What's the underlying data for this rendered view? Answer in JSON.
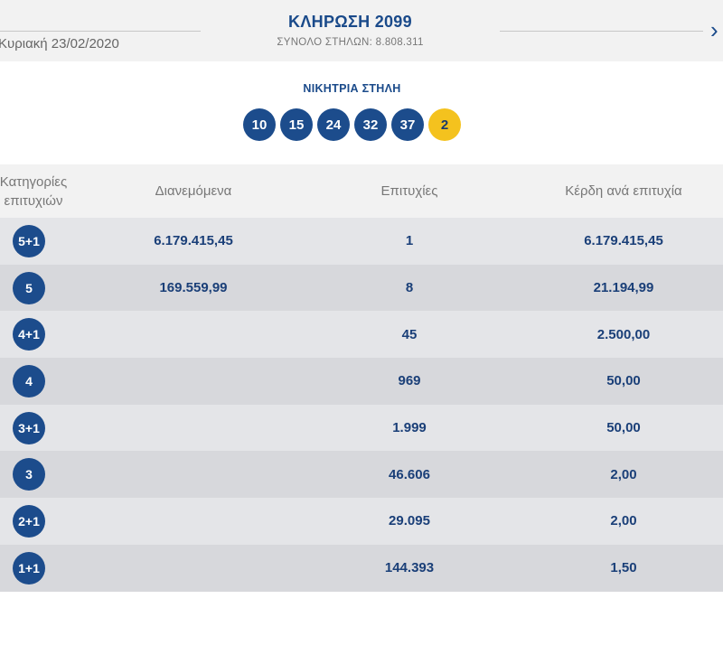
{
  "header": {
    "date": "Κυριακή 23/02/2020",
    "draw_title": "ΚΛΗΡΩΣΗ 2099",
    "total_columns": "ΣΥΝΟΛΟ ΣΤΗΛΩΝ: 8.808.311",
    "next_arrow": "›"
  },
  "winning": {
    "label": "ΝΙΚΗΤΡΙΑ ΣΤΗΛΗ",
    "numbers": [
      "10",
      "15",
      "24",
      "32",
      "37"
    ],
    "joker": "2",
    "colors": {
      "number_ball": "#1c4c8c",
      "joker_ball": "#f4c21e"
    }
  },
  "table": {
    "headers": {
      "category": "Κατηγορίες επιτυχιών",
      "distributed": "Διανεμόμενα",
      "winners": "Επιτυχίες",
      "prize": "Κέρδη ανά επιτυχία"
    },
    "rows": [
      {
        "category": "5+1",
        "distributed": "6.179.415,45",
        "winners": "1",
        "prize": "6.179.415,45"
      },
      {
        "category": "5",
        "distributed": "169.559,99",
        "winners": "8",
        "prize": "21.194,99"
      },
      {
        "category": "4+1",
        "distributed": "",
        "winners": "45",
        "prize": "2.500,00"
      },
      {
        "category": "4",
        "distributed": "",
        "winners": "969",
        "prize": "50,00"
      },
      {
        "category": "3+1",
        "distributed": "",
        "winners": "1.999",
        "prize": "50,00"
      },
      {
        "category": "3",
        "distributed": "",
        "winners": "46.606",
        "prize": "2,00"
      },
      {
        "category": "2+1",
        "distributed": "",
        "winners": "29.095",
        "prize": "2,00"
      },
      {
        "category": "1+1",
        "distributed": "",
        "winners": "144.393",
        "prize": "1,50"
      }
    ]
  }
}
